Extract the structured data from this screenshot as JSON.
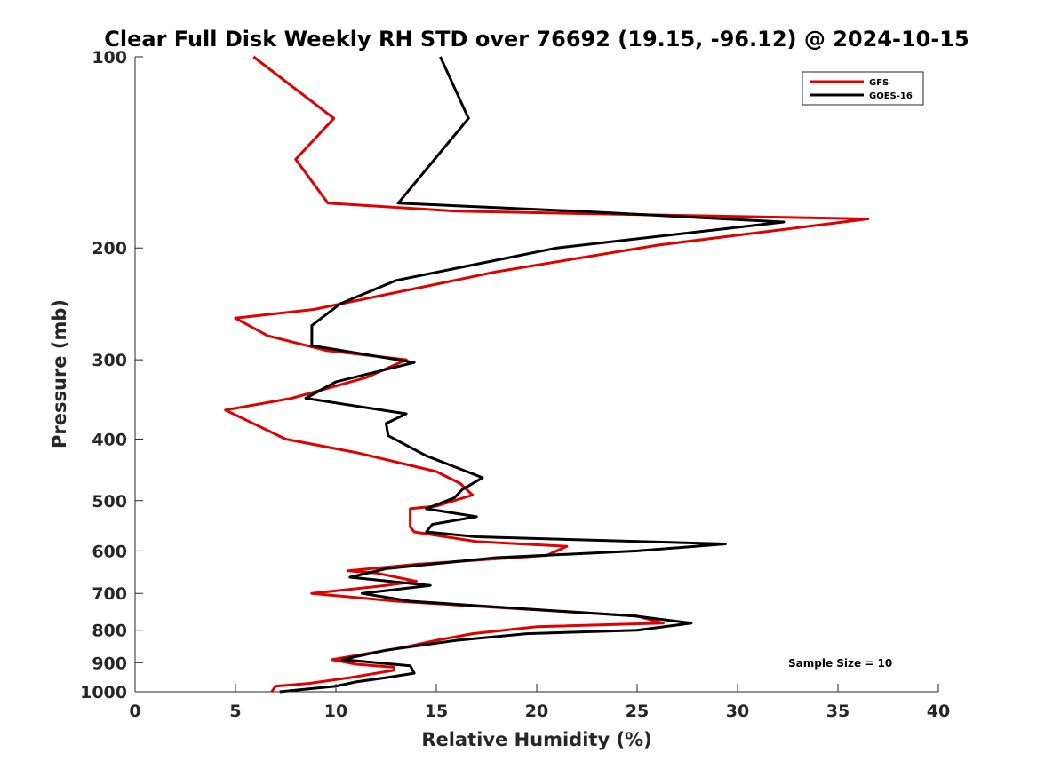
{
  "chart_data": {
    "type": "line",
    "title": "Clear Full Disk Weekly RH STD over 76692 (19.15, -96.12) @ 2024-10-15",
    "xlabel": "Relative Humidity (%)",
    "ylabel": "Pressure (mb)",
    "xlim": [
      0,
      40
    ],
    "ylim": [
      100,
      1000
    ],
    "yscale": "log",
    "y_reversed": true,
    "xticks": [
      "0",
      "5",
      "10",
      "15",
      "20",
      "25",
      "30",
      "35",
      "40"
    ],
    "yticks": [
      "100",
      "200",
      "300",
      "400",
      "500",
      "600",
      "700",
      "800",
      "900",
      "1000"
    ],
    "grid": false,
    "legend_position": "top-right",
    "annotation": "Sample Size = 10",
    "series": [
      {
        "name": "GFS",
        "color": "#e00000",
        "points": [
          [
            5.9,
            100
          ],
          [
            9.9,
            125
          ],
          [
            8.0,
            145
          ],
          [
            9.6,
            170
          ],
          [
            16.0,
            175
          ],
          [
            36.5,
            180
          ],
          [
            26.0,
            198
          ],
          [
            18.0,
            218
          ],
          [
            8.9,
            250
          ],
          [
            5.0,
            258
          ],
          [
            6.6,
            275
          ],
          [
            9.5,
            290
          ],
          [
            13.5,
            300
          ],
          [
            11.5,
            320
          ],
          [
            7.8,
            345
          ],
          [
            4.5,
            360
          ],
          [
            7.5,
            400
          ],
          [
            11.0,
            420
          ],
          [
            15.0,
            450
          ],
          [
            16.2,
            470
          ],
          [
            16.8,
            490
          ],
          [
            15.0,
            510
          ],
          [
            13.7,
            515
          ],
          [
            13.7,
            550
          ],
          [
            13.9,
            560
          ],
          [
            17.0,
            580
          ],
          [
            21.5,
            590
          ],
          [
            20.5,
            610
          ],
          [
            14.0,
            630
          ],
          [
            10.6,
            645
          ],
          [
            12.0,
            650
          ],
          [
            14.0,
            670
          ],
          [
            12.5,
            680
          ],
          [
            8.8,
            700
          ],
          [
            13.0,
            720
          ],
          [
            25.0,
            760
          ],
          [
            26.3,
            780
          ],
          [
            20.0,
            790
          ],
          [
            16.8,
            810
          ],
          [
            15.0,
            830
          ],
          [
            13.5,
            850
          ],
          [
            9.8,
            890
          ],
          [
            11.0,
            905
          ],
          [
            12.9,
            915
          ],
          [
            12.9,
            925
          ],
          [
            10.7,
            950
          ],
          [
            8.7,
            970
          ],
          [
            7.0,
            980
          ],
          [
            6.8,
            1000
          ]
        ]
      },
      {
        "name": "GOES-16",
        "color": "#000000",
        "points": [
          [
            15.2,
            100
          ],
          [
            16.6,
            125
          ],
          [
            13.1,
            170
          ],
          [
            22.0,
            175
          ],
          [
            32.3,
            182
          ],
          [
            21.0,
            200
          ],
          [
            13.0,
            225
          ],
          [
            10.2,
            245
          ],
          [
            8.8,
            265
          ],
          [
            8.8,
            285
          ],
          [
            13.9,
            303
          ],
          [
            10.0,
            325
          ],
          [
            8.5,
            345
          ],
          [
            13.5,
            365
          ],
          [
            12.5,
            378
          ],
          [
            12.6,
            395
          ],
          [
            14.5,
            425
          ],
          [
            17.3,
            460
          ],
          [
            16.3,
            480
          ],
          [
            15.9,
            495
          ],
          [
            14.5,
            515
          ],
          [
            17.0,
            530
          ],
          [
            14.8,
            545
          ],
          [
            14.5,
            560
          ],
          [
            17.0,
            570
          ],
          [
            29.4,
            585
          ],
          [
            25.0,
            600
          ],
          [
            18.0,
            615
          ],
          [
            12.5,
            640
          ],
          [
            10.7,
            660
          ],
          [
            14.7,
            680
          ],
          [
            11.3,
            700
          ],
          [
            13.7,
            720
          ],
          [
            24.9,
            760
          ],
          [
            27.7,
            780
          ],
          [
            25.0,
            800
          ],
          [
            19.5,
            810
          ],
          [
            16.0,
            830
          ],
          [
            12.5,
            860
          ],
          [
            10.3,
            890
          ],
          [
            13.7,
            910
          ],
          [
            13.9,
            935
          ],
          [
            12.5,
            950
          ],
          [
            11.0,
            965
          ],
          [
            10.0,
            980
          ],
          [
            7.2,
            1000
          ]
        ]
      }
    ]
  }
}
